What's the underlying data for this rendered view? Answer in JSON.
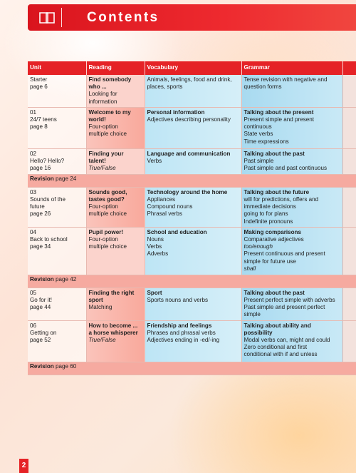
{
  "header": {
    "title": "Contents",
    "icon": "book-icon"
  },
  "columns": [
    "Unit",
    "Reading",
    "Vocabulary",
    "Grammar"
  ],
  "rows": [
    {
      "unit": [
        "Starter",
        "page 6"
      ],
      "reading": [
        "Find somebody",
        "who ...",
        "Looking for",
        "information"
      ],
      "vocab_head": "",
      "vocab": [
        "Animals, feelings, food and drink,",
        "places, sports"
      ],
      "grammar_head": "",
      "grammar": [
        "Tense revision with negative and",
        "question forms"
      ]
    },
    {
      "unit": [
        "01",
        "24/7 teens",
        "page 8"
      ],
      "reading": [
        "Welcome to my",
        "world!",
        "Four-option",
        "multiple choice"
      ],
      "vocab_head": "Personal information",
      "vocab": [
        "Adjectives describing personality"
      ],
      "grammar_head": "Talking about the present",
      "grammar": [
        "Present simple and present",
        "continuous",
        "State verbs",
        "Time expressions"
      ]
    },
    {
      "unit": [
        "02",
        "Hello? Hello?",
        "page 16"
      ],
      "reading": [
        "Finding your",
        "talent!",
        "True/False"
      ],
      "vocab_head": "Language and communication",
      "vocab": [
        "Verbs"
      ],
      "grammar_head": "Talking about the past",
      "grammar": [
        "Past simple",
        "Past simple and past continuous"
      ]
    },
    {
      "revision_label": "Revision",
      "revision_page": "page 24"
    },
    {
      "unit": [
        "03",
        "Sounds of the",
        "future",
        "page 26"
      ],
      "reading": [
        "Sounds good,",
        "tastes good?",
        "Four-option",
        "multiple choice"
      ],
      "vocab_head": "Technology around the home",
      "vocab": [
        "Appliances",
        "Compound nouns",
        "Phrasal verbs"
      ],
      "grammar_head": "Talking about the future",
      "grammar": [
        "will for predictions, offers and",
        "immediate decisions",
        "going to for plans",
        "Indefinite pronouns"
      ]
    },
    {
      "unit": [
        "04",
        "Back to school",
        "page 34"
      ],
      "reading": [
        "Pupil power!",
        "Four-option",
        "multiple choice"
      ],
      "vocab_head": "School and education",
      "vocab": [
        "Nouns",
        "Verbs",
        "Adverbs"
      ],
      "grammar_head": "Making comparisons",
      "grammar": [
        "Comparative adjectives",
        "too/enough",
        "Present continuous and present",
        "simple for future use",
        "shall"
      ]
    },
    {
      "revision_label": "Revision",
      "revision_page": "page 42"
    },
    {
      "unit": [
        "05",
        "Go for it!",
        "page 44"
      ],
      "reading": [
        "Finding the right",
        "sport",
        "Matching"
      ],
      "vocab_head": "Sport",
      "vocab": [
        "Sports nouns and verbs"
      ],
      "grammar_head": "Talking about the past",
      "grammar": [
        "Present perfect simple with adverbs",
        "Past simple and present perfect",
        "simple"
      ]
    },
    {
      "unit": [
        "06",
        "Getting on",
        "page 52"
      ],
      "reading": [
        "How to become ...",
        "a horse whisperer",
        "True/False"
      ],
      "vocab_head": "Friendship and feelings",
      "vocab": [
        "Phrases and phrasal verbs",
        "Adjectives ending in -ed/-ing"
      ],
      "grammar_head": "Talking about ability and",
      "grammar_head2": "possibility",
      "grammar": [
        "Modal verbs can, might and could",
        "Zero conditional and first",
        "conditional with if and unless"
      ]
    },
    {
      "revision_label": "Revision",
      "revision_page": "page 60"
    }
  ],
  "page_number": "2"
}
